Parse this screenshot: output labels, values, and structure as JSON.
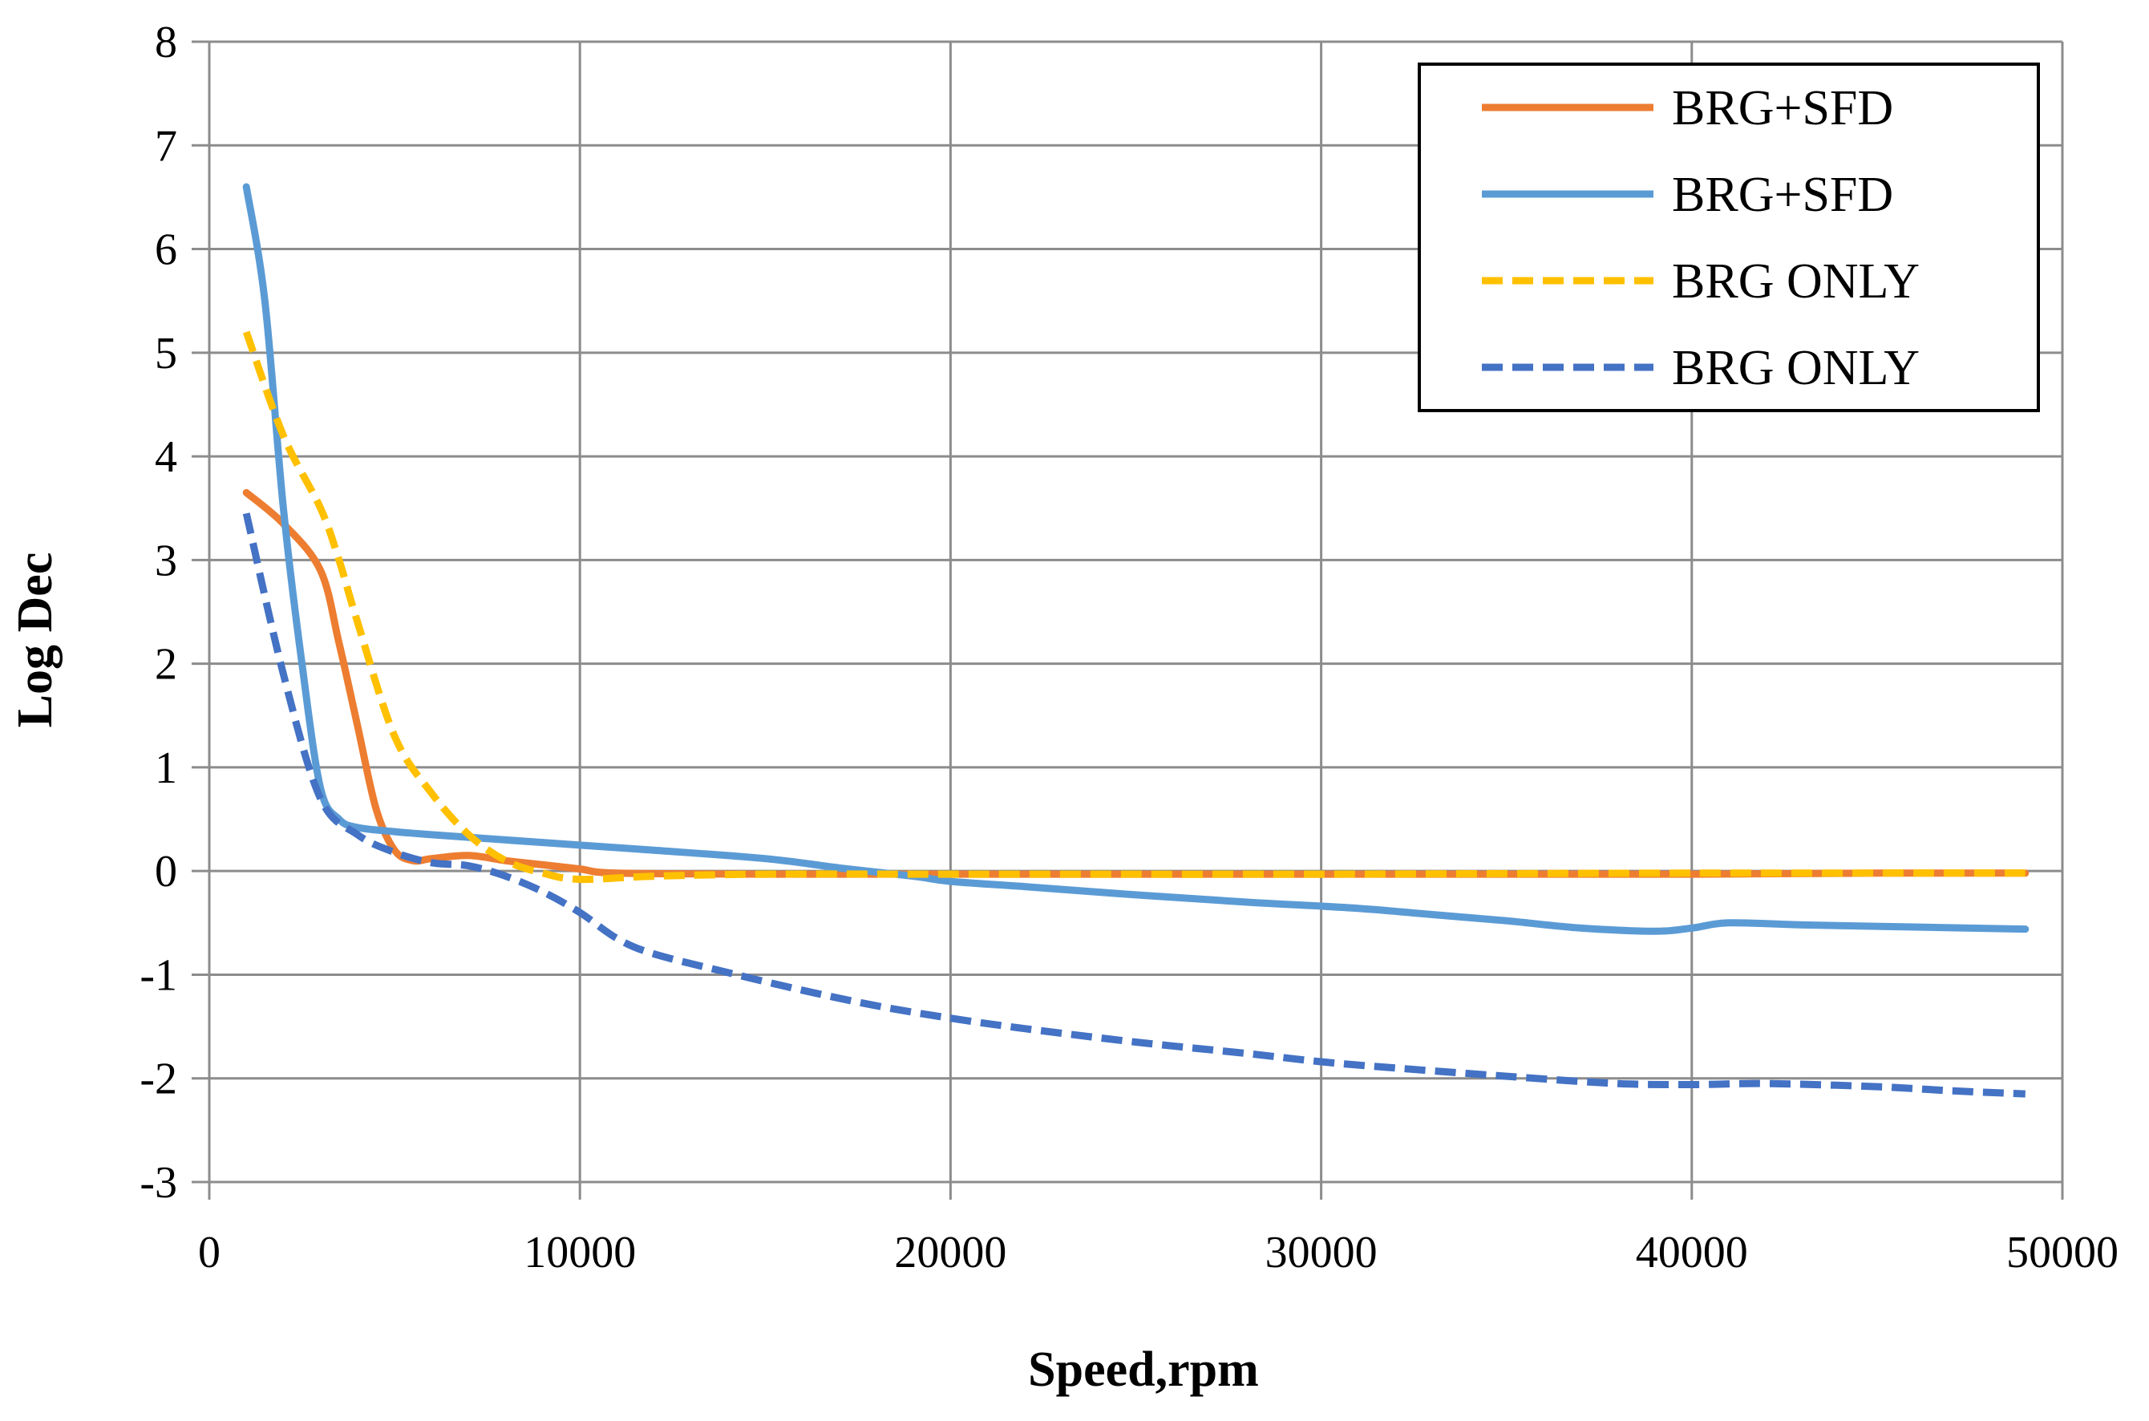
{
  "chart_data": {
    "type": "line",
    "title": "",
    "xlabel": "Speed,rpm",
    "ylabel": "Log Dec",
    "xlim": [
      0,
      50000
    ],
    "ylim": [
      -3,
      8
    ],
    "xticks": [
      0,
      10000,
      20000,
      30000,
      40000,
      50000
    ],
    "yticks": [
      -3,
      -2,
      -1,
      0,
      1,
      2,
      3,
      4,
      5,
      6,
      7,
      8
    ],
    "grid": true,
    "legend_position": "top-right",
    "series": [
      {
        "name": "BRG+SFD",
        "color": "#ED7D31",
        "dash": "solid",
        "x": [
          1000,
          2000,
          3000,
          3500,
          4000,
          4500,
          5000,
          5500,
          6000,
          7000,
          8000,
          9000,
          10000,
          11000,
          15000,
          20000,
          30000,
          35000,
          40000,
          45000,
          49000
        ],
        "y": [
          3.65,
          3.35,
          2.9,
          2.2,
          1.4,
          0.6,
          0.2,
          0.1,
          0.12,
          0.15,
          0.1,
          0.06,
          0.02,
          -0.02,
          -0.03,
          -0.03,
          -0.03,
          -0.03,
          -0.03,
          -0.02,
          -0.02
        ]
      },
      {
        "name": "BRG+SFD",
        "color": "#5B9BD5",
        "dash": "solid",
        "x": [
          1000,
          1500,
          2000,
          2500,
          3000,
          3500,
          4000,
          5000,
          6000,
          8000,
          10000,
          12000,
          15000,
          17000,
          19000,
          20000,
          22000,
          25000,
          28000,
          31000,
          33000,
          35000,
          37000,
          39000,
          40000,
          41000,
          43000,
          46000,
          49000
        ],
        "y": [
          6.6,
          5.5,
          3.5,
          2.0,
          0.8,
          0.5,
          0.42,
          0.38,
          0.35,
          0.3,
          0.25,
          0.2,
          0.12,
          0.03,
          -0.05,
          -0.1,
          -0.15,
          -0.23,
          -0.3,
          -0.36,
          -0.42,
          -0.48,
          -0.55,
          -0.58,
          -0.55,
          -0.5,
          -0.52,
          -0.54,
          -0.56
        ]
      },
      {
        "name": "BRG ONLY",
        "color": "#FFC000",
        "dash": "dashed",
        "x": [
          1000,
          2000,
          3000,
          3500,
          4000,
          5000,
          6000,
          7000,
          8000,
          9000,
          10000,
          12000,
          15000,
          20000,
          30000,
          40000,
          49000
        ],
        "y": [
          5.2,
          4.2,
          3.5,
          3.0,
          2.4,
          1.3,
          0.75,
          0.35,
          0.1,
          -0.02,
          -0.08,
          -0.05,
          -0.03,
          -0.03,
          -0.03,
          -0.02,
          -0.02
        ]
      },
      {
        "name": "BRG ONLY",
        "color": "#4472C4",
        "dash": "dashed",
        "x": [
          1000,
          2000,
          3000,
          4000,
          5000,
          6000,
          7000,
          8000,
          9000,
          10000,
          11000,
          12000,
          14000,
          16000,
          18000,
          20000,
          22000,
          25000,
          28000,
          30000,
          32000,
          35000,
          38000,
          40000,
          42000,
          45000,
          47000,
          49000
        ],
        "y": [
          3.45,
          1.9,
          0.7,
          0.35,
          0.18,
          0.08,
          0.05,
          -0.05,
          -0.2,
          -0.4,
          -0.65,
          -0.8,
          -0.98,
          -1.15,
          -1.3,
          -1.42,
          -1.52,
          -1.65,
          -1.76,
          -1.84,
          -1.9,
          -1.98,
          -2.05,
          -2.06,
          -2.05,
          -2.08,
          -2.12,
          -2.15
        ]
      }
    ]
  }
}
